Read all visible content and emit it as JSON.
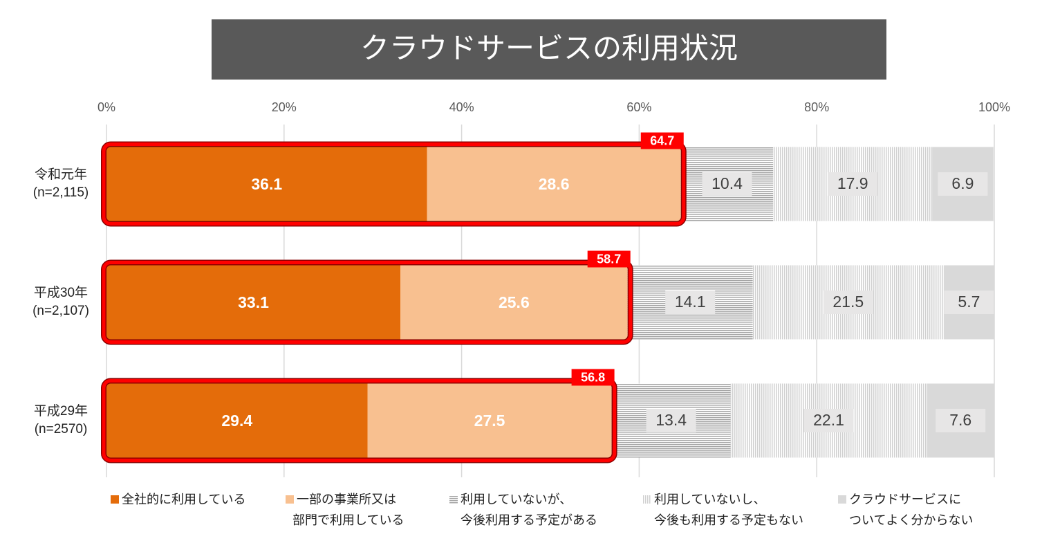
{
  "chart_data": {
    "type": "stacked-bar-horizontal-percent",
    "title": "クラウドサービスの利用状況",
    "categories": [
      [
        "令和元年",
        "(n=2,115)"
      ],
      [
        "平成30年",
        "(n=2,107)"
      ],
      [
        "平成29年",
        "(n=2570)"
      ]
    ],
    "series": [
      {
        "name": [
          "全社的に利用している"
        ],
        "color": "#e46c0a",
        "fill": "solid",
        "values": [
          36.1,
          33.1,
          29.4
        ]
      },
      {
        "name": [
          "一部の事業所又は",
          "部門で利用している"
        ],
        "color": "#f8c090",
        "fill": "solid",
        "values": [
          28.6,
          25.6,
          27.5
        ]
      },
      {
        "name": [
          "利用していないが、",
          "今後利用する予定がある"
        ],
        "color": "#a6a6a6",
        "fill": "horizontal-stripes",
        "values": [
          10.4,
          14.1,
          13.4
        ]
      },
      {
        "name": [
          "利用していないし、",
          "今後も利用する予定もない"
        ],
        "color": "#d0d0d0",
        "fill": "vertical-stripes",
        "values": [
          17.9,
          21.5,
          22.1
        ]
      },
      {
        "name": [
          "クラウドサービスに",
          "ついてよく分からない"
        ],
        "color": "#d9d9d9",
        "fill": "solid",
        "values": [
          6.9,
          5.7,
          7.6
        ]
      }
    ],
    "highlight_totals": [
      64.7,
      58.7,
      56.8
    ],
    "highlight_color": "#ff0000",
    "xlim": [
      0,
      100
    ],
    "xticks": [
      {
        "value": 0,
        "label": "0%"
      },
      {
        "value": 20,
        "label": "20%"
      },
      {
        "value": 40,
        "label": "40%"
      },
      {
        "value": 60,
        "label": "60%"
      },
      {
        "value": 80,
        "label": "80%"
      },
      {
        "value": 100,
        "label": "100%"
      }
    ],
    "grid": true
  }
}
